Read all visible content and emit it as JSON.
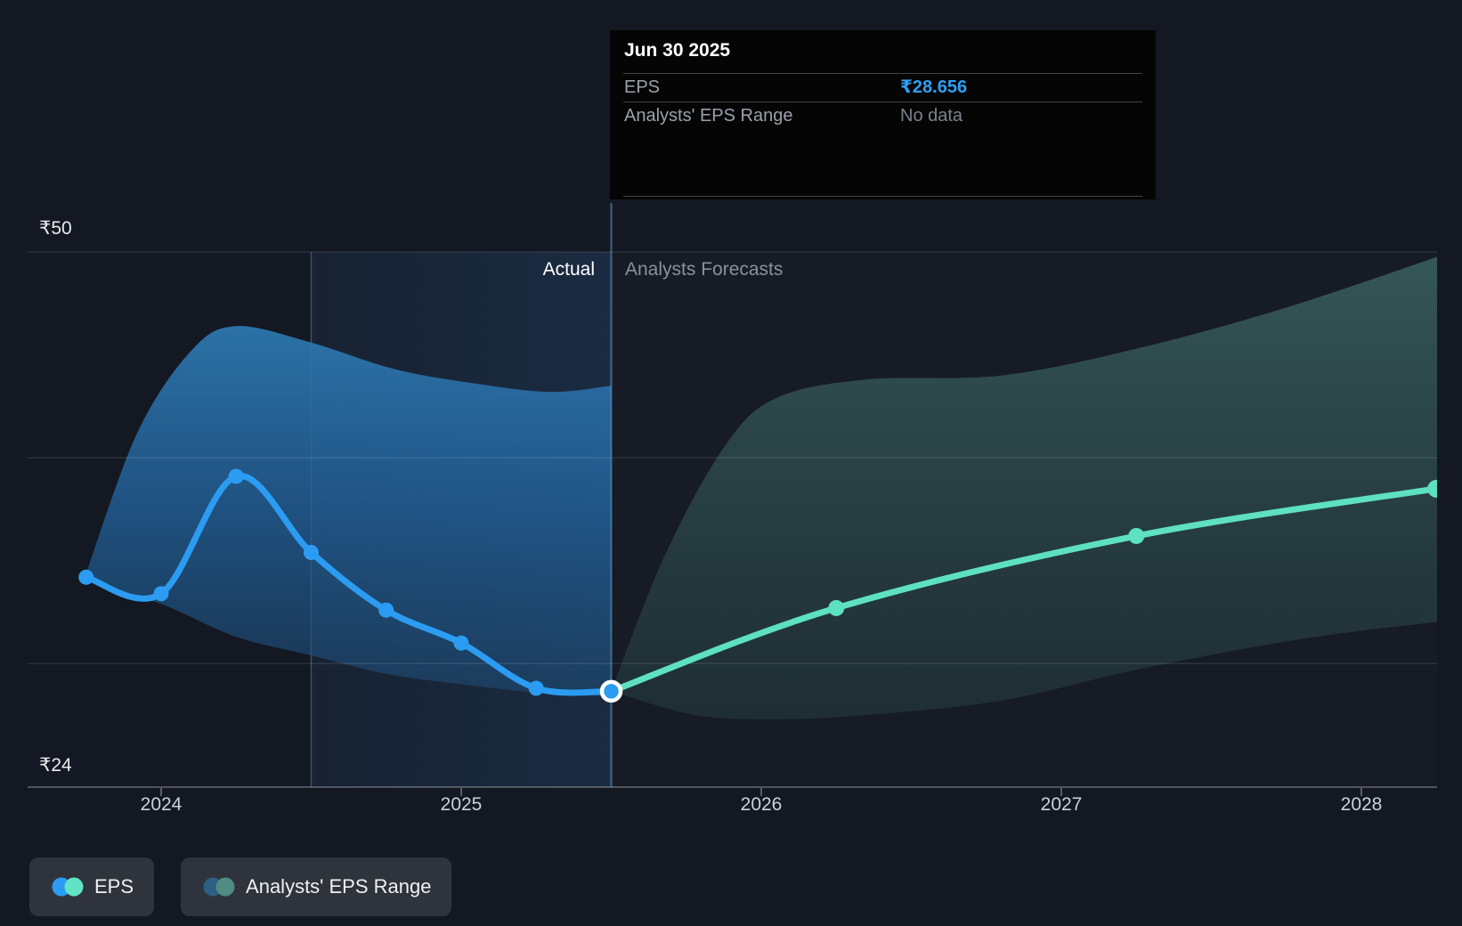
{
  "chart_labels": {
    "actual": "Actual",
    "forecast": "Analysts Forecasts",
    "y_top": "₹50",
    "y_bottom": "₹24"
  },
  "tooltip": {
    "title": "Jun 30 2025",
    "rows": [
      {
        "label": "EPS",
        "value": "₹28.656",
        "value_color": "#2f9ff5"
      },
      {
        "label": "Analysts' EPS Range",
        "value": "No data",
        "value_color": "#7c828c"
      }
    ]
  },
  "legend": [
    {
      "label": "EPS",
      "dot_colors": [
        "#2b9cf2",
        "#63e3c6"
      ]
    },
    {
      "label": "Analysts' EPS Range",
      "dot_colors": [
        "#2d6084",
        "#4f8c84"
      ]
    }
  ],
  "chart_data": {
    "type": "line",
    "currency": "₹",
    "ylim": [
      24,
      50
    ],
    "y_labeled_values": [
      50,
      24
    ],
    "gridline_values": [
      50,
      40,
      30
    ],
    "x_ticks": [
      {
        "x": 2024,
        "label": "2024"
      },
      {
        "x": 2025,
        "label": "2025"
      },
      {
        "x": 2026,
        "label": "2026"
      },
      {
        "x": 2027,
        "label": "2027"
      },
      {
        "x": 2028,
        "label": "2028"
      }
    ],
    "divider_x": 2025.5,
    "divider_date": "Jun 30 2025",
    "highlight_range": [
      2024.5,
      2025.5
    ],
    "series": [
      {
        "name": "EPS",
        "role": "actual",
        "color": "#2b9cf2",
        "points": [
          [
            "Sep 30 2023",
            2023.75,
            34.2
          ],
          [
            "Dec 31 2023",
            2024.0,
            33.4
          ],
          [
            "Mar 31 2024",
            2024.25,
            39.1
          ],
          [
            "Jun 30 2024",
            2024.5,
            35.4
          ],
          [
            "Sep 30 2024",
            2024.75,
            32.6
          ],
          [
            "Dec 31 2024",
            2025.0,
            31.0
          ],
          [
            "Mar 31 2025",
            2025.25,
            28.8
          ],
          [
            "Jun 30 2025",
            2025.5,
            28.656
          ]
        ]
      },
      {
        "name": "EPS forecast",
        "role": "forecast",
        "color": "#5ee0c2",
        "points": [
          [
            "Jun 30 2025",
            2025.5,
            28.656
          ],
          [
            "Mar 31 2026",
            2026.25,
            32.7
          ],
          [
            "Mar 31 2027",
            2027.25,
            36.2
          ],
          [
            "Mar 31 2028",
            2028.25,
            38.5
          ]
        ]
      }
    ],
    "bands": [
      {
        "name": "Analysts' EPS Range (past)",
        "role": "past",
        "top": [
          [
            2023.75,
            34.4
          ],
          [
            2023.92,
            41.2
          ],
          [
            2024.1,
            45.2
          ],
          [
            2024.25,
            46.4
          ],
          [
            2024.5,
            45.6
          ],
          [
            2024.78,
            44.3
          ],
          [
            2025.05,
            43.6
          ],
          [
            2025.3,
            43.2
          ],
          [
            2025.5,
            43.5
          ]
        ],
        "bottom": [
          [
            2023.75,
            34.0
          ],
          [
            2024.0,
            32.9
          ],
          [
            2024.25,
            31.3
          ],
          [
            2024.5,
            30.4
          ],
          [
            2024.75,
            29.5
          ],
          [
            2025.0,
            29.0
          ],
          [
            2025.25,
            28.6
          ],
          [
            2025.5,
            28.4
          ]
        ]
      },
      {
        "name": "Analysts' EPS Range (forecast)",
        "role": "forecast",
        "top": [
          [
            2025.5,
            28.66
          ],
          [
            2025.68,
            35.3
          ],
          [
            2025.88,
            40.6
          ],
          [
            2026.05,
            42.9
          ],
          [
            2026.35,
            43.8
          ],
          [
            2026.8,
            44.0
          ],
          [
            2027.25,
            45.3
          ],
          [
            2027.75,
            47.3
          ],
          [
            2028.3,
            50.0
          ]
        ],
        "bottom": [
          [
            2025.5,
            28.66
          ],
          [
            2025.78,
            27.5
          ],
          [
            2026.05,
            27.3
          ],
          [
            2026.35,
            27.5
          ],
          [
            2026.8,
            28.2
          ],
          [
            2027.25,
            29.7
          ],
          [
            2027.8,
            31.2
          ],
          [
            2028.3,
            32.1
          ]
        ]
      }
    ]
  }
}
